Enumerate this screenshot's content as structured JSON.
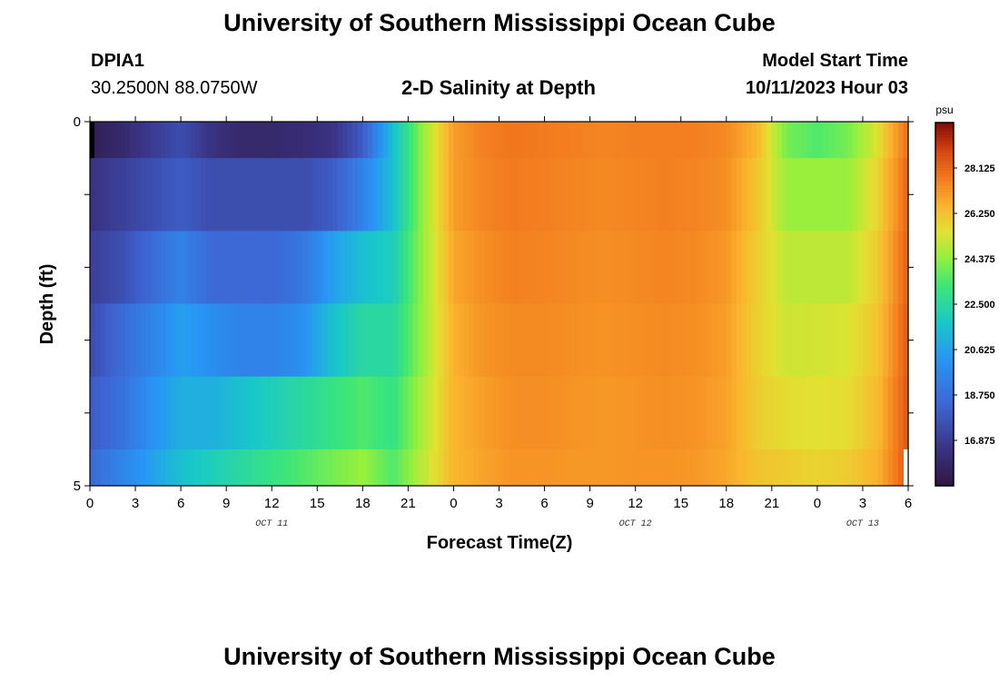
{
  "page": {
    "title": "University of Southern Mississippi Ocean Cube",
    "footer_title": "University of Southern Mississippi Ocean Cube",
    "station": "DPIA1",
    "coords": "30.2500N  88.0750W",
    "plot_title": "2-D Salinity at Depth",
    "model_start_label": "Model Start Time",
    "model_start_value": "10/11/2023 Hour 03"
  },
  "chart_data": {
    "type": "heatmap",
    "title": "2-D Salinity at Depth",
    "xlabel": "Forecast Time(Z)",
    "ylabel": "Depth (ft)",
    "ylim": [
      0,
      5
    ],
    "y_ticks": [
      "0",
      "5"
    ],
    "x_ticks": [
      "0",
      "3",
      "6",
      "9",
      "12",
      "15",
      "18",
      "21",
      "0",
      "3",
      "6",
      "9",
      "12",
      "15",
      "18",
      "21",
      "0",
      "3",
      "6"
    ],
    "date_labels": [
      {
        "label": "OCT 11",
        "at_hour": 12
      },
      {
        "label": "OCT 12",
        "at_hour": 36
      },
      {
        "label": "OCT 13",
        "at_hour": 51
      }
    ],
    "x_range_hours": [
      0,
      54
    ],
    "colorbar": {
      "unit": "psu",
      "min": 15.0,
      "max": 30.0,
      "labels": [
        "28.125",
        "26.250",
        "24.375",
        "22.500",
        "20.625",
        "18.750",
        "16.875"
      ],
      "values": [
        28.125,
        26.25,
        24.375,
        22.5,
        20.625,
        18.75,
        16.875
      ]
    },
    "depth_layers": [
      0.25,
      1.0,
      2.0,
      3.0,
      4.0,
      4.75
    ],
    "times": [
      0,
      2,
      4,
      6,
      8,
      10,
      12,
      14,
      16,
      18,
      20,
      22,
      24,
      26,
      28,
      30,
      32,
      34,
      36,
      38,
      40,
      42,
      44,
      46,
      48,
      50,
      52,
      54
    ],
    "salinity": [
      [
        15.5,
        16.0,
        16.8,
        17.5,
        16.5,
        16.0,
        16.0,
        16.2,
        16.5,
        18.0,
        21.5,
        24.5,
        27.0,
        27.6,
        27.8,
        27.7,
        27.6,
        27.5,
        27.6,
        27.6,
        27.6,
        27.4,
        26.5,
        24.0,
        23.5,
        24.0,
        25.5,
        28.0
      ],
      [
        16.5,
        17.0,
        17.5,
        18.0,
        17.5,
        17.5,
        17.5,
        17.5,
        18.0,
        19.5,
        21.5,
        24.5,
        27.0,
        27.5,
        27.7,
        27.6,
        27.5,
        27.4,
        27.5,
        27.6,
        27.5,
        27.3,
        26.2,
        24.5,
        24.5,
        24.5,
        25.8,
        28.2
      ],
      [
        17.0,
        17.5,
        18.5,
        19.5,
        18.5,
        18.5,
        18.5,
        19.0,
        20.5,
        21.5,
        22.0,
        24.5,
        26.8,
        27.3,
        27.6,
        27.5,
        27.4,
        27.3,
        27.4,
        27.5,
        27.4,
        27.1,
        26.0,
        25.0,
        25.0,
        25.0,
        26.0,
        28.3
      ],
      [
        17.5,
        18.5,
        19.5,
        20.5,
        20.0,
        19.5,
        19.5,
        20.0,
        21.5,
        22.5,
        22.5,
        24.5,
        26.6,
        27.2,
        27.4,
        27.4,
        27.3,
        27.2,
        27.3,
        27.4,
        27.3,
        27.0,
        25.9,
        25.2,
        25.3,
        25.4,
        26.2,
        28.4
      ],
      [
        18.0,
        18.8,
        20.0,
        21.0,
        21.0,
        21.5,
        22.0,
        22.5,
        23.0,
        23.5,
        23.0,
        24.8,
        26.5,
        27.0,
        27.3,
        27.3,
        27.2,
        27.1,
        27.2,
        27.3,
        27.2,
        26.9,
        26.0,
        25.6,
        25.5,
        25.6,
        26.4,
        28.5
      ],
      [
        18.5,
        19.5,
        20.5,
        21.5,
        22.0,
        22.5,
        23.0,
        23.5,
        24.0,
        24.5,
        23.5,
        25.0,
        26.5,
        26.9,
        27.2,
        27.2,
        27.1,
        27.1,
        27.2,
        27.2,
        27.1,
        26.8,
        26.2,
        26.0,
        25.8,
        26.0,
        26.6,
        28.5
      ]
    ]
  }
}
